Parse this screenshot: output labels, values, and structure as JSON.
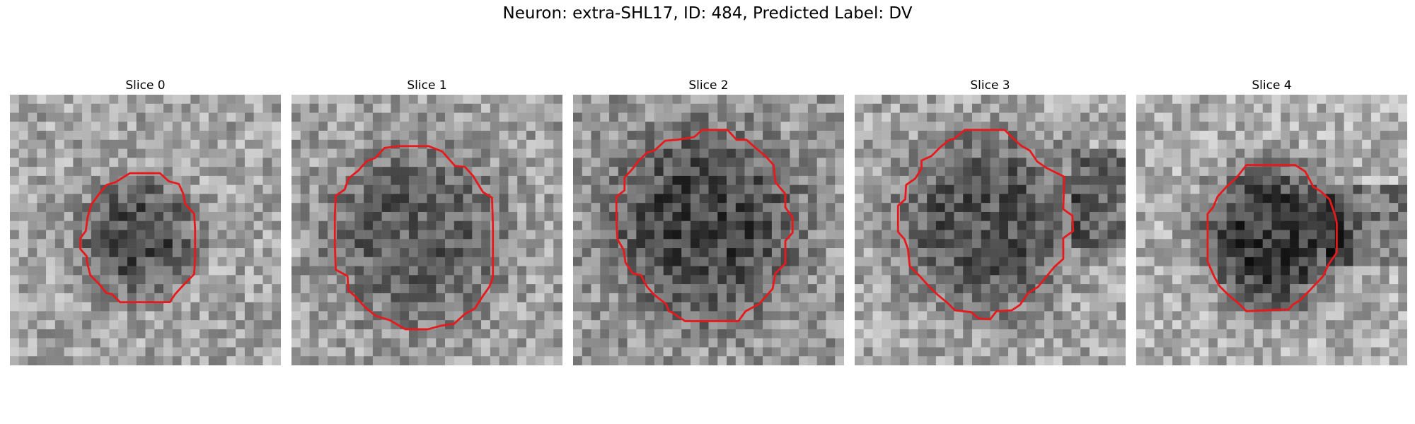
{
  "figure": {
    "title": "Neuron: extra-SHL17, ID: 484, Predicted Label: DV",
    "contour_color": "#e8191c"
  },
  "panels": [
    {
      "title": "Slice 0"
    },
    {
      "title": "Slice 1"
    },
    {
      "title": "Slice 2"
    },
    {
      "title": "Slice 3"
    },
    {
      "title": "Slice 4"
    }
  ]
}
